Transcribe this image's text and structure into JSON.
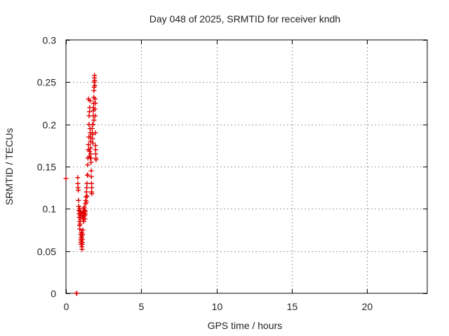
{
  "chart_data": {
    "type": "scatter",
    "title": "Day 048 of 2025, SRMTID for receiver kndh",
    "xlabel": "GPS time / hours",
    "ylabel": "SRMTID / TECUs",
    "xlim": [
      0,
      24
    ],
    "ylim": [
      0,
      0.3
    ],
    "xticks": [
      0,
      5,
      10,
      15,
      20
    ],
    "xtick_labels": [
      "0",
      "5",
      "10",
      "15",
      "20"
    ],
    "yticks": [
      0,
      0.05,
      0.1,
      0.15,
      0.2,
      0.25,
      0.3
    ],
    "ytick_labels": [
      "0",
      "0.05",
      "0.1",
      "0.15",
      "0.2",
      "0.25",
      "0.3"
    ],
    "grid": true,
    "marker": "plus",
    "color": "#e00000",
    "series": [
      {
        "name": "SRMTID",
        "points": [
          [
            0.0,
            0.136
          ],
          [
            0.7,
            0.0
          ],
          [
            0.72,
            0.0
          ],
          [
            0.78,
            0.137
          ],
          [
            0.79,
            0.13
          ],
          [
            0.8,
            0.125
          ],
          [
            0.82,
            0.122
          ],
          [
            0.83,
            0.11
          ],
          [
            0.85,
            0.103
          ],
          [
            0.86,
            0.098
          ],
          [
            0.87,
            0.094
          ],
          [
            0.88,
            0.09
          ],
          [
            0.9,
            0.085
          ],
          [
            0.91,
            0.08
          ],
          [
            0.92,
            0.076
          ],
          [
            0.94,
            0.082
          ],
          [
            0.95,
            0.097
          ],
          [
            0.96,
            0.092
          ],
          [
            0.97,
            0.088
          ],
          [
            0.98,
            0.07
          ],
          [
            0.99,
            0.064
          ],
          [
            1.0,
            0.06
          ],
          [
            1.01,
            0.058
          ],
          [
            1.02,
            0.062
          ],
          [
            1.03,
            0.066
          ],
          [
            1.04,
            0.072
          ],
          [
            1.05,
            0.068
          ],
          [
            1.06,
            0.055
          ],
          [
            1.07,
            0.052
          ],
          [
            1.08,
            0.058
          ],
          [
            1.09,
            0.06
          ],
          [
            1.1,
            0.064
          ],
          [
            1.11,
            0.07
          ],
          [
            1.12,
            0.075
          ],
          [
            1.13,
            0.088
          ],
          [
            1.14,
            0.092
          ],
          [
            1.15,
            0.096
          ],
          [
            1.16,
            0.1
          ],
          [
            1.17,
            0.09
          ],
          [
            1.18,
            0.085
          ],
          [
            1.19,
            0.095
          ],
          [
            1.2,
            0.1
          ],
          [
            1.22,
            0.102
          ],
          [
            1.24,
            0.098
          ],
          [
            1.25,
            0.092
          ],
          [
            1.26,
            0.088
          ],
          [
            1.28,
            0.094
          ],
          [
            1.3,
            0.106
          ],
          [
            1.32,
            0.11
          ],
          [
            1.34,
            0.114
          ],
          [
            1.36,
            0.12
          ],
          [
            1.38,
            0.125
          ],
          [
            1.4,
            0.13
          ],
          [
            1.42,
            0.14
          ],
          [
            1.44,
            0.152
          ],
          [
            1.46,
            0.16
          ],
          [
            1.48,
            0.17
          ],
          [
            1.5,
            0.176
          ],
          [
            1.52,
            0.185
          ],
          [
            1.53,
            0.2
          ],
          [
            1.54,
            0.21
          ],
          [
            1.56,
            0.215
          ],
          [
            1.58,
            0.22
          ],
          [
            1.6,
            0.195
          ],
          [
            1.61,
            0.19
          ],
          [
            1.62,
            0.185
          ],
          [
            1.63,
            0.18
          ],
          [
            1.64,
            0.172
          ],
          [
            1.65,
            0.165
          ],
          [
            1.66,
            0.16
          ],
          [
            1.67,
            0.155
          ],
          [
            1.68,
            0.145
          ],
          [
            1.69,
            0.138
          ],
          [
            1.7,
            0.13
          ],
          [
            1.71,
            0.125
          ],
          [
            1.72,
            0.118
          ],
          [
            1.74,
            0.195
          ],
          [
            1.75,
            0.19
          ],
          [
            1.76,
            0.188
          ],
          [
            1.77,
            0.183
          ],
          [
            1.78,
            0.178
          ],
          [
            1.8,
            0.2
          ],
          [
            1.81,
            0.21
          ],
          [
            1.82,
            0.216
          ],
          [
            1.83,
            0.22
          ],
          [
            1.84,
            0.225
          ],
          [
            1.85,
            0.232
          ],
          [
            1.86,
            0.24
          ],
          [
            1.87,
            0.244
          ],
          [
            1.88,
            0.25
          ],
          [
            1.89,
            0.255
          ],
          [
            1.9,
            0.258
          ],
          [
            1.91,
            0.252
          ],
          [
            1.92,
            0.246
          ],
          [
            1.93,
            0.23
          ],
          [
            1.94,
            0.21
          ],
          [
            1.95,
            0.19
          ],
          [
            1.96,
            0.175
          ],
          [
            1.97,
            0.17
          ],
          [
            1.98,
            0.165
          ],
          [
            1.99,
            0.16
          ],
          [
            2.0,
            0.158
          ],
          [
            1.5,
            0.23
          ],
          [
            1.6,
            0.228
          ],
          [
            1.45,
            0.14
          ],
          [
            1.4,
            0.115
          ],
          [
            1.35,
            0.108
          ],
          [
            1.28,
            0.097
          ],
          [
            1.2,
            0.094
          ],
          [
            1.12,
            0.09
          ],
          [
            1.05,
            0.092
          ],
          [
            0.98,
            0.095
          ],
          [
            0.92,
            0.1
          ],
          [
            1.55,
            0.162
          ],
          [
            1.57,
            0.168
          ],
          [
            1.62,
            0.16
          ],
          [
            1.7,
            0.12
          ],
          [
            1.78,
            0.2
          ],
          [
            1.86,
            0.205
          ],
          [
            1.92,
            0.218
          ],
          [
            1.95,
            0.225
          ]
        ]
      }
    ]
  }
}
